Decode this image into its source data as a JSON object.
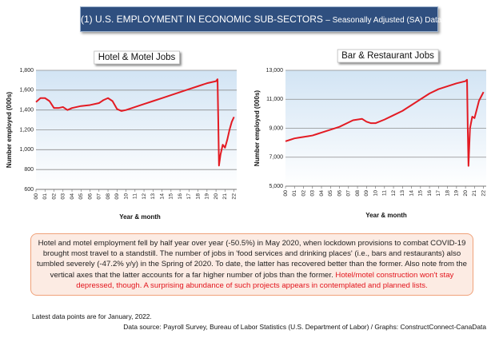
{
  "header": {
    "title": "(1) U.S. EMPLOYMENT IN ECONOMIC SUB-SECTORS",
    "subtitle": "– Seasonally Adjusted (SA) Data"
  },
  "chart_data": [
    {
      "type": "line",
      "title": "Hotel & Motel Jobs",
      "ylabel": "Number employed (000s)",
      "xlabel": "Year & month",
      "color": "#e31b23",
      "grid": true,
      "x": [
        2000,
        2000.5,
        2001,
        2001.5,
        2002,
        2002.5,
        2003,
        2003.5,
        2004,
        2005,
        2006,
        2007,
        2007.5,
        2008,
        2008.5,
        2009,
        2009.5,
        2010,
        2011,
        2012,
        2013,
        2014,
        2015,
        2016,
        2017,
        2018,
        2019,
        2020,
        2020.17,
        2020.25,
        2020.33,
        2020.5,
        2020.75,
        2021,
        2021.25,
        2021.5,
        2021.75,
        2022
      ],
      "values": [
        1480,
        1520,
        1520,
        1490,
        1420,
        1420,
        1430,
        1400,
        1420,
        1440,
        1450,
        1470,
        1500,
        1520,
        1490,
        1410,
        1390,
        1400,
        1430,
        1460,
        1490,
        1520,
        1550,
        1580,
        1610,
        1640,
        1670,
        1690,
        1710,
        1300,
        840,
        950,
        1050,
        1020,
        1100,
        1200,
        1280,
        1330
      ],
      "xlim": [
        2000,
        2022.3
      ],
      "xticks": [
        {
          "value": 2000,
          "label": "00"
        },
        {
          "value": 2001,
          "label": "01"
        },
        {
          "value": 2002,
          "label": "02"
        },
        {
          "value": 2003,
          "label": "03"
        },
        {
          "value": 2004,
          "label": "04"
        },
        {
          "value": 2005,
          "label": "05"
        },
        {
          "value": 2006,
          "label": "06"
        },
        {
          "value": 2007,
          "label": "07"
        },
        {
          "value": 2008,
          "label": "08"
        },
        {
          "value": 2009,
          "label": "09"
        },
        {
          "value": 2010,
          "label": "10"
        },
        {
          "value": 2011,
          "label": "11"
        },
        {
          "value": 2012,
          "label": "12"
        },
        {
          "value": 2013,
          "label": "13"
        },
        {
          "value": 2014,
          "label": "14"
        },
        {
          "value": 2015,
          "label": "15"
        },
        {
          "value": 2016,
          "label": "16"
        },
        {
          "value": 2017,
          "label": "17"
        },
        {
          "value": 2018,
          "label": "18"
        },
        {
          "value": 2019,
          "label": "19"
        },
        {
          "value": 2020,
          "label": "20"
        },
        {
          "value": 2021,
          "label": "21"
        },
        {
          "value": 2022,
          "label": "22"
        }
      ],
      "ylim": [
        600,
        1800
      ],
      "yticks": [
        600,
        800,
        {
          "value": 1000,
          "label": "1,000"
        },
        {
          "value": 1200,
          "label": "1,200"
        },
        {
          "value": 1400,
          "label": "1,400"
        },
        {
          "value": 1600,
          "label": "1,600"
        },
        {
          "value": 1800,
          "label": "1,800"
        }
      ]
    },
    {
      "type": "line",
      "title": "Bar & Restaurant Jobs",
      "ylabel": "Number employed (000s)",
      "xlabel": "Year & month",
      "color": "#e31b23",
      "grid": true,
      "x": [
        2000,
        2000.5,
        2001,
        2001.5,
        2002,
        2002.5,
        2003,
        2003.5,
        2004,
        2005,
        2006,
        2007,
        2007.5,
        2008,
        2008.5,
        2009,
        2009.5,
        2010,
        2011,
        2012,
        2013,
        2014,
        2015,
        2016,
        2017,
        2018,
        2019,
        2020,
        2020.17,
        2020.25,
        2020.33,
        2020.5,
        2020.75,
        2021,
        2021.25,
        2021.5,
        2021.75,
        2022
      ],
      "values": [
        8100,
        8200,
        8300,
        8350,
        8400,
        8450,
        8500,
        8600,
        8700,
        8900,
        9100,
        9400,
        9550,
        9600,
        9650,
        9450,
        9350,
        9350,
        9600,
        9900,
        10200,
        10600,
        11000,
        11400,
        11700,
        11900,
        12100,
        12250,
        12350,
        9000,
        6400,
        9000,
        9800,
        9700,
        10300,
        10900,
        11200,
        11500
      ],
      "xlim": [
        2000,
        2022.3
      ],
      "xticks": [
        {
          "value": 2000,
          "label": "00"
        },
        {
          "value": 2001,
          "label": "01"
        },
        {
          "value": 2002,
          "label": "02"
        },
        {
          "value": 2003,
          "label": "03"
        },
        {
          "value": 2004,
          "label": "04"
        },
        {
          "value": 2005,
          "label": "05"
        },
        {
          "value": 2006,
          "label": "06"
        },
        {
          "value": 2007,
          "label": "07"
        },
        {
          "value": 2008,
          "label": "08"
        },
        {
          "value": 2009,
          "label": "09"
        },
        {
          "value": 2010,
          "label": "10"
        },
        {
          "value": 2011,
          "label": "11"
        },
        {
          "value": 2012,
          "label": "12"
        },
        {
          "value": 2013,
          "label": "13"
        },
        {
          "value": 2014,
          "label": "14"
        },
        {
          "value": 2015,
          "label": "15"
        },
        {
          "value": 2016,
          "label": "16"
        },
        {
          "value": 2017,
          "label": "17"
        },
        {
          "value": 2018,
          "label": "18"
        },
        {
          "value": 2019,
          "label": "19"
        },
        {
          "value": 2020,
          "label": "20"
        },
        {
          "value": 2021,
          "label": "21"
        },
        {
          "value": 2022,
          "label": "22"
        }
      ],
      "ylim": [
        5000,
        13000
      ],
      "yticks": [
        {
          "value": 5000,
          "label": "5,000"
        },
        {
          "value": 7000,
          "label": "7,000"
        },
        {
          "value": 9000,
          "label": "9,000"
        },
        {
          "value": 11000,
          "label": "11,000"
        },
        {
          "value": 13000,
          "label": "13,000"
        }
      ]
    }
  ],
  "note": {
    "text": "Hotel and motel employment fell by half year over year (-50.5%) in May 2020, when lockdown provisions to combat COVID-19 brought most travel to a standstill. The number of jobs in 'food services and drinking places' (i.e., bars and restaurants) also tumbled severely (-47.2% y/y) in the Spring of 2020. To date, the latter has recovered better than the former. Also note from the vertical axes that the latter accounts for a far higher number of jobs than the former.",
    "highlight": "Hotel/motel construction won't stay depressed, though. A surprising abundance of such projects appears in contemplated and planned lists."
  },
  "footer": {
    "latest": "Latest data points are for January, 2022.",
    "source": "Data source: Payroll Survey, Bureau of Labor Statistics (U.S. Department of Labor) / Graphs: ConstructConnect-CanaData"
  }
}
